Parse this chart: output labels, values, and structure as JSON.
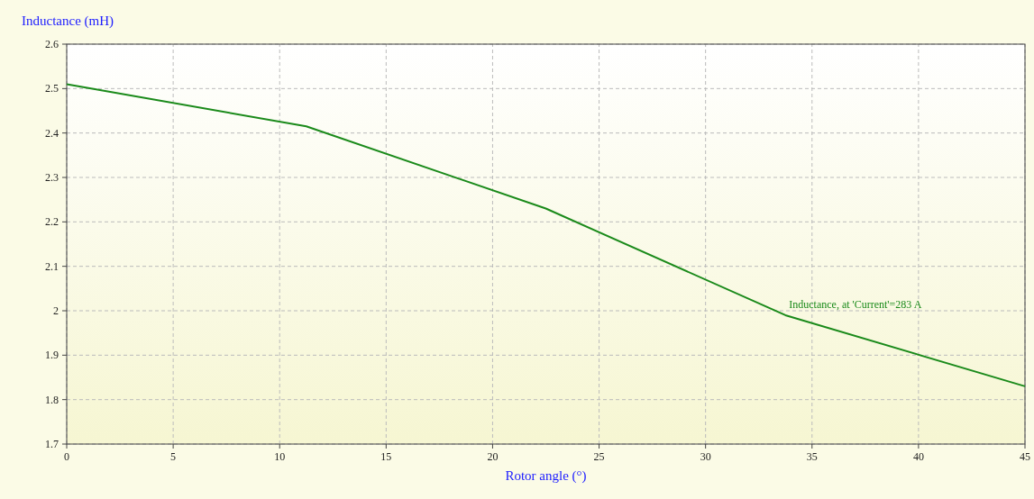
{
  "chart_data": {
    "type": "line",
    "xlabel": "Rotor angle (°)",
    "ylabel": "Inductance (mH)",
    "x": [
      0,
      11.25,
      22.5,
      33.75,
      45
    ],
    "series": [
      {
        "name": "Inductance, at 'Current'=283 A",
        "color": "#1a8a1a",
        "values": [
          2.51,
          2.415,
          2.23,
          1.99,
          1.83
        ]
      }
    ],
    "xlim": [
      0,
      45
    ],
    "xticks": [
      0,
      5,
      10,
      15,
      20,
      25,
      30,
      35,
      40,
      45
    ],
    "ylim": [
      1.7,
      2.6
    ],
    "yticks": [
      1.7,
      1.8,
      1.9,
      2,
      2.1,
      2.2,
      2.3,
      2.4,
      2.5,
      2.6
    ],
    "grid": true,
    "marker": "none",
    "line_style": "solid"
  }
}
